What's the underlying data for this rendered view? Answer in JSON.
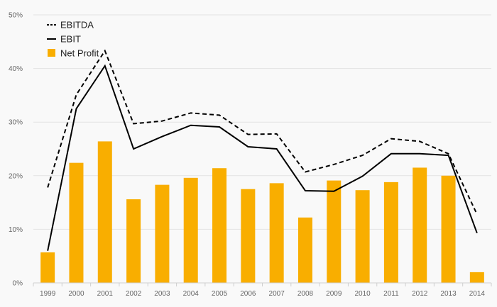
{
  "chart_data": {
    "type": "bar",
    "title": "",
    "xlabel": "",
    "ylabel": "",
    "categories": [
      "1999",
      "2000",
      "2001",
      "2002",
      "2003",
      "2004",
      "2005",
      "2006",
      "2007",
      "2008",
      "2009",
      "2010",
      "2011",
      "2012",
      "2013",
      "2014"
    ],
    "ylim": [
      0,
      50
    ],
    "yticks": [
      0,
      10,
      20,
      30,
      40,
      50
    ],
    "ytick_labels": [
      "0%",
      "10%",
      "20%",
      "30%",
      "40%",
      "50%"
    ],
    "grid": true,
    "legend_position": "top-left",
    "series": [
      {
        "name": "EBITDA",
        "type": "line",
        "style": "dashed",
        "color": "#000000",
        "values": [
          17.8,
          35.1,
          43.3,
          29.7,
          30.2,
          31.7,
          31.3,
          27.7,
          27.8,
          20.7,
          22.1,
          23.8,
          26.9,
          26.4,
          24.1,
          12.8
        ]
      },
      {
        "name": "EBIT",
        "type": "line",
        "style": "solid",
        "color": "#000000",
        "values": [
          6.0,
          32.5,
          40.5,
          25.0,
          27.3,
          29.4,
          29.1,
          25.4,
          25.0,
          17.2,
          17.1,
          19.9,
          24.1,
          24.1,
          23.8,
          9.3
        ]
      },
      {
        "name": "Net Profit",
        "type": "bar",
        "color": "#f9ae00",
        "values": [
          5.7,
          22.4,
          26.4,
          15.6,
          18.3,
          19.6,
          21.4,
          17.5,
          18.6,
          12.2,
          19.1,
          17.3,
          18.8,
          21.5,
          20.0,
          2.0
        ]
      }
    ]
  }
}
